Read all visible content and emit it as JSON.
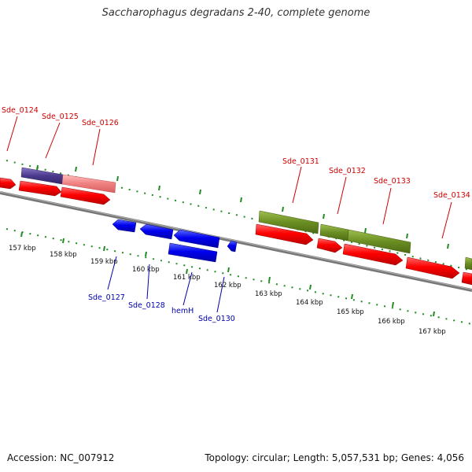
{
  "title": "Saccharophagus degradans 2-40, complete genome",
  "accession": "Accession: NC_007912",
  "summary": "Topology: circular; Length: 5,057,531 bp; Genes: 4,056",
  "colors": {
    "upper_label": "#cc0000",
    "lower_label": "#0000aa",
    "tick": "#228b22",
    "ruler": "#888888"
  },
  "upper_labels": [
    "Sde_0124",
    "Sde_0125",
    "Sde_0126",
    "Sde_0131",
    "Sde_0132",
    "Sde_0133",
    "Sde_0134"
  ],
  "lower_labels": [
    "Sde_0127",
    "Sde_0128",
    "hemH",
    "Sde_0130"
  ],
  "ruler_labels": [
    "157 kbp",
    "158 kbp",
    "159 kbp",
    "160 kbp",
    "161 kbp",
    "162 kbp",
    "163 kbp",
    "164 kbp",
    "165 kbp",
    "166 kbp",
    "167 kbp"
  ]
}
